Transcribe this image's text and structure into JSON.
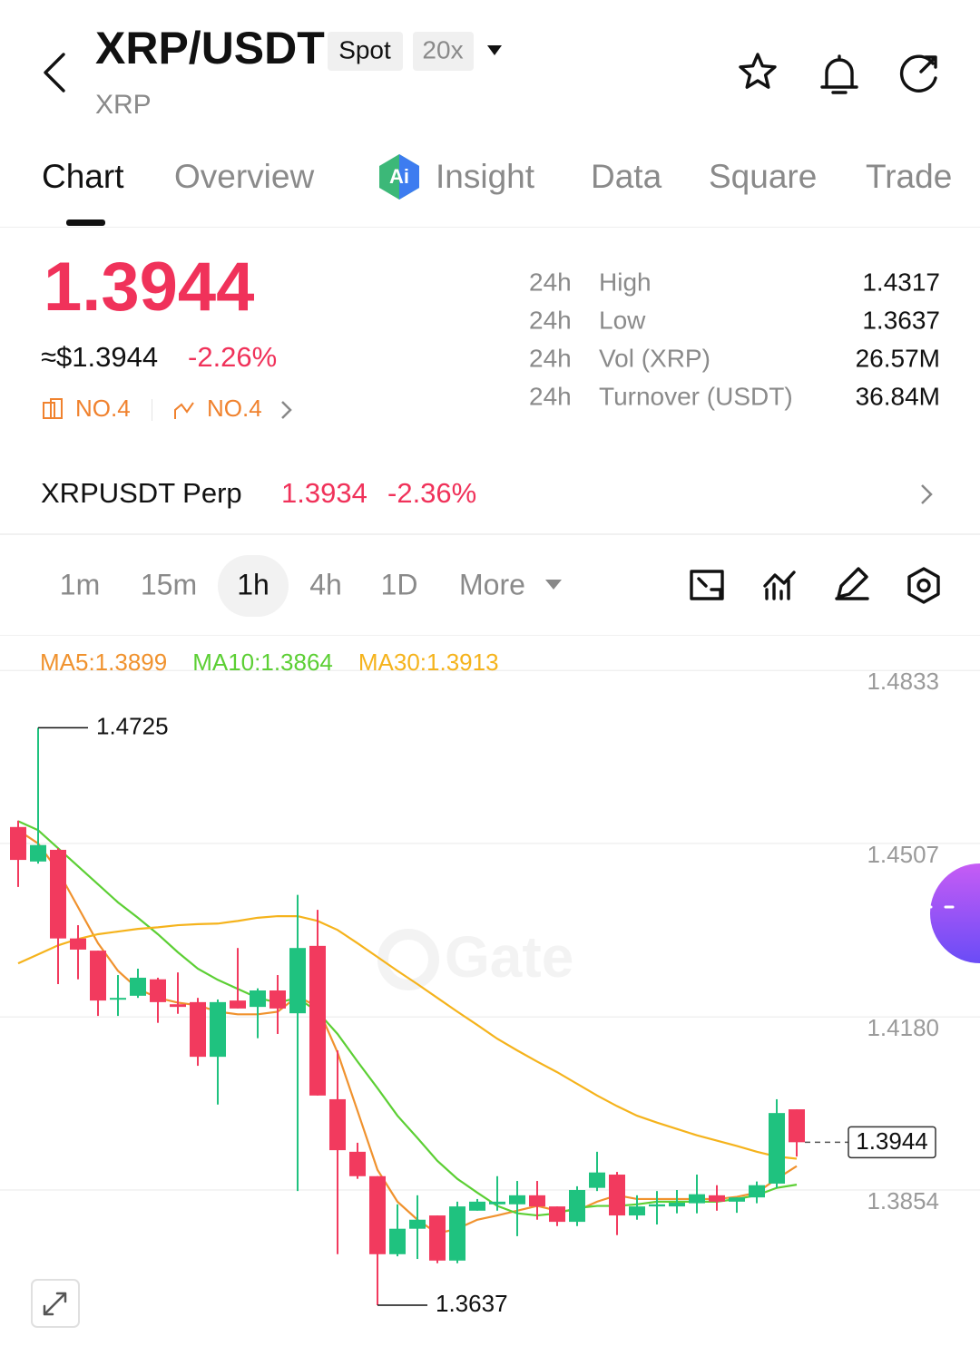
{
  "header": {
    "title": "XRP/USDT",
    "badges": [
      "Spot",
      "20x"
    ],
    "subtitle": "XRP"
  },
  "tabs": [
    "Chart",
    "Overview",
    "Insight",
    "Data",
    "Square",
    "Trade"
  ],
  "ticker": {
    "price": "1.3944",
    "usd_price": "≈$1.3944",
    "change": "-2.26%",
    "ranks": [
      "NO.4",
      "NO.4"
    ],
    "stats": [
      [
        "24h",
        "High",
        "1.4317"
      ],
      [
        "24h",
        "Low",
        "1.3637"
      ],
      [
        "24h",
        "Vol (XRP)",
        "26.57M"
      ],
      [
        "24h",
        "Turnover (USDT)",
        "36.84M"
      ]
    ]
  },
  "perp": {
    "name": "XRPUSDT Perp",
    "price": "1.3934",
    "change": "-2.36%"
  },
  "intervals": [
    "1m",
    "15m",
    "1h",
    "4h",
    "1D",
    "More"
  ],
  "chart_data": {
    "type": "candlestick",
    "watermark": "Gate",
    "up_color": "#1fc27f",
    "down_color": "#f23a5e",
    "open": [
      1.4538,
      1.4473,
      1.4495,
      1.4328,
      1.4305,
      1.4213,
      1.422,
      1.4251,
      1.4204,
      1.4208,
      1.4105,
      1.4211,
      1.4199,
      1.423,
      1.4187,
      1.4314,
      1.4025,
      1.3926,
      1.388,
      1.3733,
      1.3781,
      1.3806,
      1.3721,
      1.3815,
      1.3827,
      1.3827,
      1.3844,
      1.3823,
      1.3794,
      1.3858,
      1.3883,
      1.3806,
      1.3823,
      1.3823,
      1.3829,
      1.3844,
      1.3832,
      1.384,
      1.3866,
      1.4006
    ],
    "high": [
      1.455,
      1.4725,
      1.4498,
      1.4353,
      1.4305,
      1.4259,
      1.4271,
      1.4254,
      1.4264,
      1.4216,
      1.4213,
      1.431,
      1.4234,
      1.4259,
      1.441,
      1.4382,
      1.4117,
      1.3943,
      1.388,
      1.3827,
      1.3844,
      1.3806,
      1.3832,
      1.3837,
      1.388,
      1.3871,
      1.3871,
      1.3823,
      1.3861,
      1.3926,
      1.3888,
      1.3844,
      1.3852,
      1.3854,
      1.3883,
      1.3863,
      1.384,
      1.387,
      1.4025,
      1.4006
    ],
    "low": [
      1.4425,
      1.4469,
      1.4242,
      1.4251,
      1.4182,
      1.4182,
      1.4216,
      1.4169,
      1.4186,
      1.4088,
      1.4015,
      1.4196,
      1.414,
      1.4148,
      1.3852,
      1.4032,
      1.3733,
      1.3875,
      1.3637,
      1.3729,
      1.3724,
      1.3716,
      1.3716,
      1.3815,
      1.3815,
      1.3767,
      1.3798,
      1.3786,
      1.3786,
      1.3852,
      1.3769,
      1.3798,
      1.3789,
      1.381,
      1.381,
      1.3815,
      1.3811,
      1.3829,
      1.3858,
      1.3917
    ],
    "close": [
      1.4476,
      1.4504,
      1.4328,
      1.4307,
      1.4211,
      1.4216,
      1.4254,
      1.4208,
      1.4199,
      1.4105,
      1.4208,
      1.4196,
      1.423,
      1.4196,
      1.431,
      1.4032,
      1.3929,
      1.388,
      1.3733,
      1.3781,
      1.3798,
      1.3721,
      1.3823,
      1.3832,
      1.3832,
      1.3844,
      1.3823,
      1.3794,
      1.3854,
      1.3887,
      1.3806,
      1.3823,
      1.3827,
      1.383,
      1.3846,
      1.3832,
      1.384,
      1.3863,
      1.3999,
      1.3944
    ],
    "series": [
      {
        "name": "MA5:1.3899",
        "color": "#f0922e",
        "values": [
          1.4532,
          1.4507,
          1.4455,
          1.4387,
          1.4319,
          1.4267,
          1.4233,
          1.4216,
          1.4207,
          1.4202,
          1.419,
          1.4185,
          1.4185,
          1.419,
          1.4219,
          1.4199,
          1.4113,
          1.4003,
          1.3892,
          1.3832,
          1.3798,
          1.3772,
          1.3781,
          1.3798,
          1.3806,
          1.3815,
          1.3824,
          1.3815,
          1.3815,
          1.3832,
          1.3844,
          1.3837,
          1.3837,
          1.3837,
          1.3837,
          1.3837,
          1.3841,
          1.3849,
          1.3875,
          1.3899
        ]
      },
      {
        "name": "MA10:1.3864",
        "color": "#5ccf34",
        "values": [
          1.4549,
          1.4532,
          1.4498,
          1.4464,
          1.443,
          1.4396,
          1.4367,
          1.4336,
          1.4302,
          1.4271,
          1.425,
          1.4233,
          1.4216,
          1.4207,
          1.4216,
          1.419,
          1.4148,
          1.4096,
          1.4046,
          1.3994,
          1.3952,
          1.3909,
          1.3875,
          1.3849,
          1.3824,
          1.381,
          1.3806,
          1.381,
          1.382,
          1.3824,
          1.3824,
          1.3827,
          1.3832,
          1.3832,
          1.3832,
          1.3832,
          1.3837,
          1.3844,
          1.3858,
          1.3864
        ]
      },
      {
        "name": "MA30:1.3913",
        "color": "#f5b31c",
        "values": [
          1.4281,
          1.4298,
          1.4315,
          1.4327,
          1.4336,
          1.4341,
          1.4346,
          1.4349,
          1.4353,
          1.4355,
          1.4356,
          1.4361,
          1.4367,
          1.437,
          1.437,
          1.4361,
          1.4344,
          1.4319,
          1.4293,
          1.4267,
          1.4242,
          1.4216,
          1.419,
          1.4165,
          1.4139,
          1.4117,
          1.4096,
          1.4076,
          1.4054,
          1.4032,
          1.4012,
          1.3994,
          1.3981,
          1.3969,
          1.3957,
          1.3947,
          1.3937,
          1.3926,
          1.3917,
          1.3913
        ]
      }
    ],
    "ylim": [
      1.356,
      1.49
    ],
    "yticks": [
      1.4833,
      1.4507,
      {
        "value": 1.418,
        "label": "1.4180"
      },
      1.3854
    ],
    "grid": true
  }
}
